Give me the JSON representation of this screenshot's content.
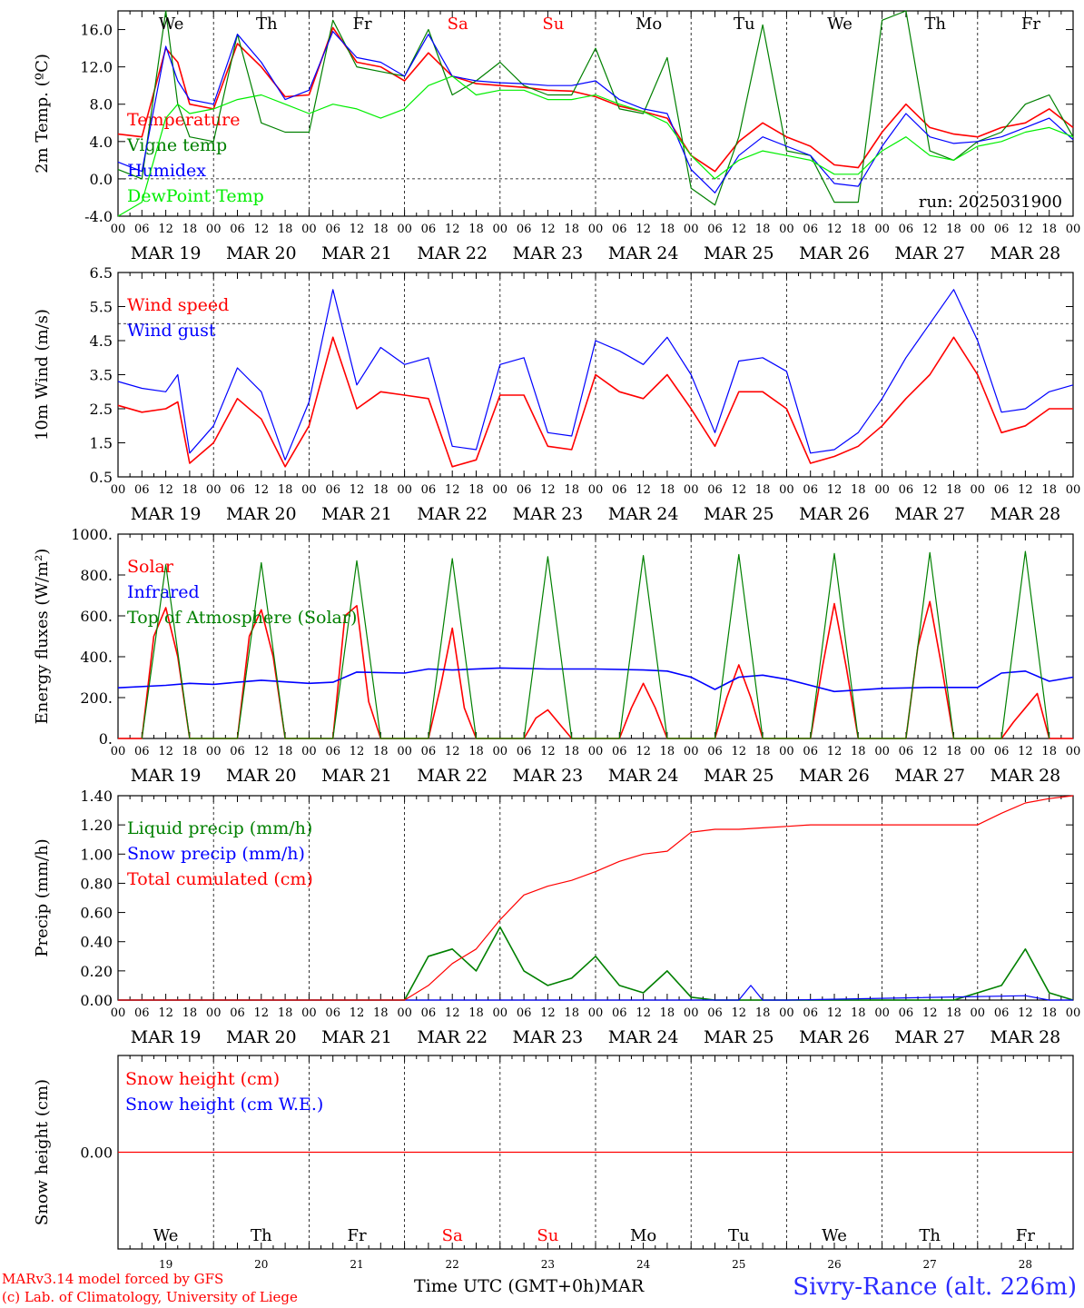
{
  "run_label": "run: 2025031900",
  "days": {
    "abbr": [
      "We",
      "Th",
      "Fr",
      "Sa",
      "Su",
      "Mo",
      "Tu",
      "We",
      "Th",
      "Fr"
    ],
    "dates": [
      "MAR 19",
      "MAR 20",
      "MAR 21",
      "MAR 22",
      "MAR 23",
      "MAR 24",
      "MAR 25",
      "MAR 26",
      "MAR 27",
      "MAR 28"
    ],
    "day_numbers": [
      "19",
      "20",
      "21",
      "22",
      "23",
      "24",
      "25",
      "26",
      "27",
      "28"
    ],
    "weekend_color": "#ff0000",
    "weekend_index": [
      3,
      4
    ]
  },
  "hour_ticks": [
    "00",
    "06",
    "12",
    "18"
  ],
  "footer": {
    "model_line": "MARv3.14 model forced by GFS",
    "lab_line": "(c) Lab. of Climatology, University of Liege",
    "time_axis": "Time UTC (GMT+0h)",
    "month": "MAR",
    "station": "Sivry-Rance (alt. 226m)"
  },
  "chart_data": [
    {
      "type": "line",
      "ylabel": "2m Temp. (ºC)",
      "ylim": [
        -4,
        18
      ],
      "yticks": [
        "-4.0",
        "0.0",
        "4.0",
        "8.0",
        "12.0",
        "16.0"
      ],
      "yticks_values": [
        -4,
        0,
        4,
        8,
        12,
        16
      ],
      "ref_line": 0,
      "x_unit": "hours since MAR 19 00 UTC",
      "series": [
        {
          "name": "Temperature",
          "color": "#ff0000",
          "x": [
            0,
            6,
            12,
            15,
            18,
            24,
            30,
            36,
            42,
            48,
            54,
            60,
            66,
            72,
            78,
            84,
            90,
            96,
            102,
            108,
            114,
            120,
            126,
            132,
            138,
            144,
            150,
            156,
            162,
            168,
            174,
            180,
            186,
            192,
            198,
            204,
            210,
            216,
            222,
            228,
            234,
            240
          ],
          "y": [
            4.8,
            4.5,
            14.0,
            12.5,
            8.0,
            7.5,
            14.5,
            12.0,
            8.8,
            9.0,
            16.2,
            12.5,
            12.0,
            10.5,
            13.5,
            11.0,
            10.2,
            10.0,
            9.8,
            9.5,
            9.4,
            8.8,
            7.8,
            7.2,
            6.5,
            2.5,
            0.8,
            4.0,
            6.0,
            4.5,
            3.5,
            1.5,
            1.2,
            5.0,
            8.0,
            5.5,
            4.8,
            4.5,
            5.5,
            6.0,
            7.5,
            5.5
          ]
        },
        {
          "name": "Vigne temp",
          "color": "#008000",
          "x": [
            0,
            6,
            12,
            15,
            18,
            24,
            30,
            36,
            42,
            48,
            54,
            60,
            66,
            72,
            78,
            84,
            90,
            96,
            102,
            108,
            114,
            120,
            126,
            132,
            138,
            144,
            150,
            156,
            162,
            168,
            174,
            180,
            186,
            192,
            198,
            204,
            210,
            216,
            222,
            228,
            234,
            240
          ],
          "y": [
            1.0,
            0.0,
            18.0,
            8.0,
            4.5,
            4.0,
            15.5,
            6.0,
            5.0,
            5.0,
            17.0,
            12.0,
            11.5,
            11.0,
            16.0,
            9.0,
            10.5,
            12.5,
            10.0,
            9.0,
            9.0,
            14.0,
            7.5,
            7.0,
            13.0,
            -1.0,
            -2.8,
            4.5,
            16.5,
            3.0,
            2.5,
            -2.5,
            -2.5,
            17.0,
            18.0,
            3.0,
            2.0,
            4.0,
            5.0,
            8.0,
            9.0,
            4.5
          ]
        },
        {
          "name": "Humidex",
          "color": "#0000ff",
          "x": [
            0,
            6,
            12,
            15,
            18,
            24,
            30,
            36,
            42,
            48,
            54,
            60,
            66,
            72,
            78,
            84,
            90,
            96,
            102,
            108,
            114,
            120,
            126,
            132,
            138,
            144,
            150,
            156,
            162,
            168,
            174,
            180,
            186,
            192,
            198,
            204,
            210,
            216,
            222,
            228,
            234,
            240
          ],
          "y": [
            1.8,
            0.8,
            14.2,
            10.5,
            8.5,
            8.0,
            15.5,
            12.5,
            8.5,
            9.5,
            15.8,
            13.0,
            12.5,
            11.0,
            15.5,
            11.0,
            10.5,
            10.3,
            10.2,
            10.0,
            10.0,
            10.5,
            8.5,
            7.5,
            7.0,
            1.0,
            -1.5,
            2.5,
            4.5,
            3.5,
            2.5,
            -0.5,
            -0.8,
            3.5,
            7.0,
            4.5,
            3.8,
            4.0,
            4.5,
            5.5,
            6.5,
            4.2
          ]
        },
        {
          "name": "DewPoint Temp",
          "color": "#00ee00",
          "x": [
            0,
            6,
            12,
            15,
            18,
            24,
            30,
            36,
            42,
            48,
            54,
            60,
            66,
            72,
            78,
            84,
            90,
            96,
            102,
            108,
            114,
            120,
            126,
            132,
            138,
            144,
            150,
            156,
            162,
            168,
            174,
            180,
            186,
            192,
            198,
            204,
            210,
            216,
            222,
            228,
            234,
            240
          ],
          "y": [
            -4.0,
            -2.5,
            6.5,
            8.0,
            7.0,
            7.5,
            8.5,
            9.0,
            8.0,
            7.0,
            8.0,
            7.5,
            6.5,
            7.5,
            10.0,
            11.0,
            9.0,
            9.5,
            9.5,
            8.5,
            8.5,
            9.0,
            8.0,
            7.2,
            6.0,
            2.5,
            0.0,
            2.0,
            3.0,
            2.5,
            2.0,
            0.5,
            0.5,
            3.0,
            4.5,
            2.5,
            2.0,
            3.5,
            4.0,
            5.0,
            5.5,
            4.5
          ]
        }
      ]
    },
    {
      "type": "line",
      "ylabel": "10m Wind (m/s)",
      "ylim": [
        0.5,
        6.5
      ],
      "yticks": [
        "0.5",
        "1.5",
        "2.5",
        "3.5",
        "4.5",
        "5.5",
        "6.5"
      ],
      "yticks_values": [
        0.5,
        1.5,
        2.5,
        3.5,
        4.5,
        5.5,
        6.5
      ],
      "ref_line": 5.0,
      "x_unit": "hours since MAR 19 00 UTC",
      "series": [
        {
          "name": "Wind speed",
          "color": "#ff0000",
          "x": [
            0,
            6,
            12,
            15,
            18,
            24,
            30,
            36,
            42,
            48,
            54,
            60,
            66,
            72,
            78,
            84,
            90,
            96,
            102,
            108,
            114,
            120,
            126,
            132,
            138,
            144,
            150,
            156,
            162,
            168,
            174,
            180,
            186,
            192,
            198,
            204,
            210,
            216,
            222,
            228,
            234,
            240
          ],
          "y": [
            2.6,
            2.4,
            2.5,
            2.7,
            0.9,
            1.5,
            2.8,
            2.2,
            0.8,
            2.0,
            4.6,
            2.5,
            3.0,
            2.9,
            2.8,
            0.8,
            1.0,
            2.9,
            2.9,
            1.4,
            1.3,
            3.5,
            3.0,
            2.8,
            3.5,
            2.5,
            1.4,
            3.0,
            3.0,
            2.5,
            0.9,
            1.1,
            1.4,
            2.0,
            2.8,
            3.5,
            4.6,
            3.5,
            1.8,
            2.0,
            2.5,
            2.5
          ]
        },
        {
          "name": "Wind gust",
          "color": "#0000ff",
          "x": [
            0,
            6,
            12,
            15,
            18,
            24,
            30,
            36,
            42,
            48,
            54,
            60,
            66,
            72,
            78,
            84,
            90,
            96,
            102,
            108,
            114,
            120,
            126,
            132,
            138,
            144,
            150,
            156,
            162,
            168,
            174,
            180,
            186,
            192,
            198,
            204,
            210,
            216,
            222,
            228,
            234,
            240
          ],
          "y": [
            3.3,
            3.1,
            3.0,
            3.5,
            1.2,
            2.0,
            3.7,
            3.0,
            1.0,
            2.7,
            6.0,
            3.2,
            4.3,
            3.8,
            4.0,
            1.4,
            1.3,
            3.8,
            4.0,
            1.8,
            1.7,
            4.5,
            4.2,
            3.8,
            4.6,
            3.5,
            1.8,
            3.9,
            4.0,
            3.6,
            1.2,
            1.3,
            1.8,
            2.8,
            4.0,
            5.0,
            6.0,
            4.5,
            2.4,
            2.5,
            3.0,
            3.2
          ]
        }
      ]
    },
    {
      "type": "line",
      "ylabel": "Energy fluxes (W/m²)",
      "ylim": [
        0,
        1000
      ],
      "yticks": [
        "0.",
        "200.",
        "400.",
        "600.",
        "800.",
        "1000."
      ],
      "yticks_values": [
        0,
        200,
        400,
        600,
        800,
        1000
      ],
      "x_unit": "hours since MAR 19 00 UTC",
      "series": [
        {
          "name": "Solar",
          "color": "#ff0000",
          "x": [
            0,
            6,
            9,
            12,
            15,
            18,
            24,
            30,
            33,
            36,
            39,
            42,
            48,
            54,
            57,
            60,
            63,
            66,
            72,
            78,
            81,
            84,
            87,
            90,
            96,
            102,
            105,
            108,
            111,
            114,
            120,
            126,
            129,
            132,
            135,
            138,
            144,
            150,
            153,
            156,
            159,
            162,
            168,
            174,
            177,
            180,
            183,
            186,
            192,
            198,
            201,
            204,
            207,
            210,
            216,
            222,
            225,
            228,
            231,
            234,
            240
          ],
          "y": [
            0,
            0,
            500,
            640,
            400,
            0,
            0,
            0,
            500,
            630,
            400,
            0,
            0,
            0,
            600,
            650,
            180,
            0,
            0,
            0,
            250,
            540,
            150,
            0,
            0,
            0,
            100,
            140,
            70,
            0,
            0,
            0,
            150,
            270,
            150,
            0,
            0,
            0,
            200,
            360,
            200,
            0,
            0,
            0,
            350,
            660,
            350,
            0,
            0,
            0,
            450,
            670,
            350,
            0,
            0,
            0,
            80,
            150,
            220,
            0,
            0
          ]
        },
        {
          "name": "Infrared",
          "color": "#0000ff",
          "x": [
            0,
            12,
            18,
            24,
            30,
            36,
            48,
            54,
            60,
            72,
            78,
            84,
            96,
            108,
            120,
            132,
            138,
            144,
            150,
            156,
            162,
            168,
            180,
            192,
            204,
            216,
            222,
            228,
            234,
            240
          ],
          "y": [
            248,
            260,
            270,
            265,
            275,
            285,
            270,
            275,
            325,
            320,
            340,
            335,
            345,
            340,
            340,
            335,
            330,
            300,
            240,
            300,
            310,
            290,
            230,
            245,
            250,
            250,
            320,
            330,
            280,
            300
          ]
        },
        {
          "name": "Top of Atmosphere (Solar)",
          "color": "#008000",
          "x": [
            6,
            12,
            18,
            30,
            36,
            42,
            54,
            60,
            66,
            78,
            84,
            90,
            102,
            108,
            114,
            126,
            132,
            138,
            150,
            156,
            162,
            174,
            180,
            186,
            198,
            204,
            210,
            222,
            228,
            234
          ],
          "y": [
            0,
            850,
            0,
            0,
            860,
            0,
            0,
            870,
            0,
            0,
            880,
            0,
            0,
            890,
            0,
            0,
            895,
            0,
            0,
            900,
            0,
            0,
            905,
            0,
            0,
            910,
            0,
            0,
            915,
            0
          ]
        }
      ]
    },
    {
      "type": "line",
      "ylabel": "Precip (mm/h)",
      "ylim": [
        0,
        1.4
      ],
      "yticks": [
        "0.00",
        "0.20",
        "0.40",
        "0.60",
        "0.80",
        "1.00",
        "1.20",
        "1.40"
      ],
      "yticks_values": [
        0,
        0.2,
        0.4,
        0.6,
        0.8,
        1.0,
        1.2,
        1.4
      ],
      "x_unit": "hours since MAR 19 00 UTC",
      "series": [
        {
          "name": "Liquid precip (mm/h)",
          "color": "#008000",
          "x": [
            0,
            72,
            78,
            84,
            90,
            96,
            102,
            108,
            114,
            120,
            126,
            132,
            138,
            144,
            150,
            156,
            162,
            168,
            174,
            180,
            186,
            192,
            198,
            204,
            210,
            216,
            222,
            228,
            234,
            240
          ],
          "y": [
            0,
            0,
            0.3,
            0.35,
            0.2,
            0.5,
            0.2,
            0.1,
            0.15,
            0.3,
            0.1,
            0.05,
            0.2,
            0.02,
            0,
            0,
            0,
            0,
            0,
            0,
            0,
            0,
            0,
            0,
            0,
            0.05,
            0.1,
            0.35,
            0.05,
            0
          ]
        },
        {
          "name": "Snow precip (mm/h)",
          "color": "#0000ff",
          "x": [
            0,
            156,
            159,
            162,
            168,
            228,
            234,
            240
          ],
          "y": [
            0,
            0,
            0.1,
            0,
            0,
            0.03,
            0,
            0
          ]
        },
        {
          "name": "Total cumulated (cm)",
          "color": "#ff0000",
          "x": [
            0,
            72,
            78,
            84,
            90,
            96,
            102,
            108,
            114,
            120,
            126,
            132,
            138,
            144,
            150,
            156,
            162,
            168,
            174,
            180,
            186,
            192,
            198,
            204,
            210,
            216,
            222,
            228,
            234,
            240
          ],
          "y": [
            0,
            0,
            0.1,
            0.25,
            0.35,
            0.55,
            0.72,
            0.78,
            0.82,
            0.88,
            0.95,
            1.0,
            1.02,
            1.15,
            1.17,
            1.17,
            1.18,
            1.19,
            1.2,
            1.2,
            1.2,
            1.2,
            1.2,
            1.2,
            1.2,
            1.2,
            1.28,
            1.35,
            1.38,
            1.4
          ]
        }
      ]
    },
    {
      "type": "line",
      "ylabel": "Snow height (cm)",
      "yticks": [
        "0.00"
      ],
      "yticks_values": [
        0
      ],
      "ylim": [
        -1,
        1
      ],
      "x_unit": "hours since MAR 19 00 UTC",
      "series": [
        {
          "name": "Snow height (cm)",
          "color": "#ff0000",
          "x": [
            0,
            240
          ],
          "y": [
            0,
            0
          ]
        },
        {
          "name": "Snow height (cm W.E.)",
          "color": "#0000ff",
          "x": [],
          "y": []
        }
      ]
    }
  ]
}
